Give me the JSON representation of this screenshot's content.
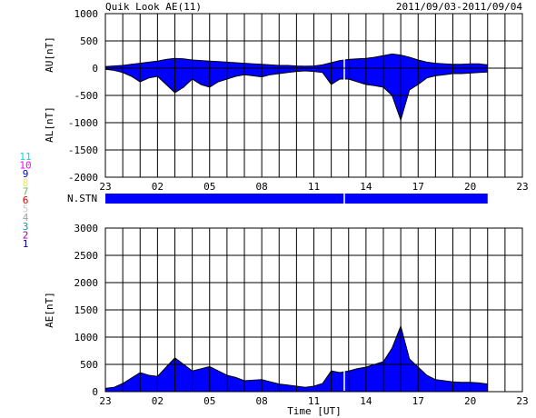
{
  "header": {
    "title": "Quik Look AE(11)",
    "date_range": "2011/09/03-2011/09/04"
  },
  "colors": {
    "fill": "#0000ff",
    "line": "#000000",
    "grid": "#000000",
    "station_bar": "#0000ff"
  },
  "station_legend": [
    {
      "label": "11",
      "color": "#00e0e0"
    },
    {
      "label": "10",
      "color": "#ff00ff"
    },
    {
      "label": "9",
      "color": "#0000c8"
    },
    {
      "label": "8",
      "color": "#e8e860"
    },
    {
      "label": "7",
      "color": "#60c060"
    },
    {
      "label": "6",
      "color": "#e00000"
    },
    {
      "label": "5",
      "color": "#c8c8c8"
    },
    {
      "label": "4",
      "color": "#a0a0a0"
    },
    {
      "label": "3",
      "color": "#00a0a0"
    },
    {
      "label": "2",
      "color": "#a000a0"
    },
    {
      "label": "1",
      "color": "#0000a0"
    }
  ],
  "station_panel": {
    "label": "N.STN"
  },
  "chart_data": [
    {
      "type": "area",
      "panel": "AU/AL",
      "ylabel_upper": "AU[nT]",
      "ylabel_lower": "AL[nT]",
      "x_unit": "UT hours since 23 UT (2011/09/03)",
      "xlim": [
        0,
        24
      ],
      "ylim": [
        -2000,
        1000
      ],
      "yticks": [
        1000,
        500,
        0,
        -500,
        -1000,
        -1500,
        -2000
      ],
      "xtick_labels": [
        "23",
        "02",
        "05",
        "08",
        "11",
        "14",
        "17",
        "20",
        "23"
      ],
      "grid": true,
      "data_end_x": 22,
      "gap_x": 13.75,
      "series": [
        {
          "key": "AU",
          "x": [
            0,
            0.5,
            1,
            1.5,
            2,
            2.5,
            3,
            3.5,
            4,
            4.5,
            5,
            5.5,
            6,
            6.5,
            7,
            7.5,
            8,
            8.5,
            9,
            9.5,
            10,
            10.5,
            11,
            11.5,
            12,
            12.5,
            13,
            13.5,
            14,
            14.5,
            15,
            15.5,
            16,
            16.5,
            17,
            17.5,
            18,
            18.5,
            19,
            19.5,
            20,
            20.5,
            21,
            21.5,
            22
          ],
          "y": [
            30,
            40,
            50,
            70,
            90,
            110,
            130,
            160,
            180,
            170,
            150,
            140,
            130,
            120,
            110,
            100,
            90,
            80,
            70,
            60,
            50,
            50,
            40,
            35,
            40,
            60,
            100,
            140,
            160,
            170,
            180,
            200,
            230,
            260,
            240,
            200,
            150,
            110,
            90,
            80,
            70,
            70,
            80,
            80,
            60
          ]
        },
        {
          "key": "AL",
          "x": [
            0,
            0.5,
            1,
            1.5,
            2,
            2.5,
            3,
            3.5,
            4,
            4.5,
            5,
            5.5,
            6,
            6.5,
            7,
            7.5,
            8,
            8.5,
            9,
            9.5,
            10,
            10.5,
            11,
            11.5,
            12,
            12.5,
            13,
            13.5,
            14,
            14.5,
            15,
            15.5,
            16,
            16.5,
            17,
            17.5,
            18,
            18.5,
            19,
            19.5,
            20,
            20.5,
            21,
            21.5,
            22
          ],
          "y": [
            -20,
            -40,
            -80,
            -150,
            -250,
            -180,
            -150,
            -300,
            -450,
            -350,
            -200,
            -300,
            -350,
            -250,
            -200,
            -150,
            -120,
            -140,
            -160,
            -120,
            -100,
            -80,
            -60,
            -50,
            -60,
            -80,
            -300,
            -200,
            -200,
            -250,
            -300,
            -320,
            -350,
            -500,
            -950,
            -400,
            -300,
            -180,
            -140,
            -120,
            -100,
            -100,
            -90,
            -80,
            -70
          ]
        }
      ]
    },
    {
      "type": "area",
      "panel": "AE",
      "ylabel": "AE[nT]",
      "xlabel": "Time [UT]",
      "x_unit": "UT hours since 23 UT (2011/09/03)",
      "xlim": [
        0,
        24
      ],
      "ylim": [
        0,
        3000
      ],
      "yticks": [
        3000,
        2500,
        2000,
        1500,
        1000,
        500,
        0
      ],
      "xtick_labels": [
        "23",
        "02",
        "05",
        "08",
        "11",
        "14",
        "17",
        "20",
        "23"
      ],
      "grid": true,
      "gap_x": 13.75,
      "series": [
        {
          "key": "AE",
          "x": [
            0,
            0.5,
            1,
            1.5,
            2,
            2.5,
            3,
            3.5,
            4,
            4.5,
            5,
            5.5,
            6,
            6.5,
            7,
            7.5,
            8,
            8.5,
            9,
            9.5,
            10,
            10.5,
            11,
            11.5,
            12,
            12.5,
            13,
            13.5,
            14,
            14.5,
            15,
            15.5,
            16,
            16.5,
            17,
            17.5,
            18,
            18.5,
            19,
            19.5,
            20,
            20.5,
            21,
            21.5,
            22
          ],
          "y": [
            60,
            80,
            150,
            250,
            350,
            300,
            280,
            450,
            620,
            500,
            380,
            420,
            460,
            380,
            300,
            260,
            200,
            210,
            220,
            180,
            140,
            120,
            100,
            80,
            100,
            150,
            380,
            350,
            380,
            420,
            450,
            500,
            550,
            800,
            1200,
            600,
            450,
            300,
            220,
            200,
            180,
            170,
            170,
            160,
            140
          ]
        }
      ]
    }
  ]
}
